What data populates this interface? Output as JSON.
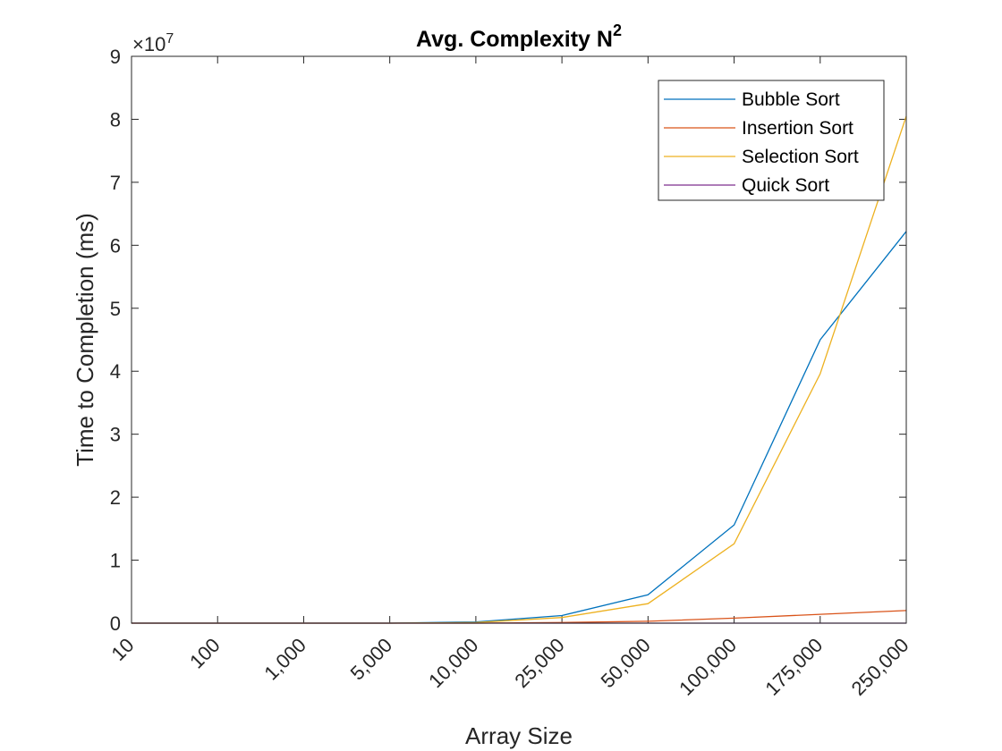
{
  "chart_data": {
    "type": "line",
    "title": "Avg. Complexity N",
    "title_superscript": "2",
    "xlabel": "Array Size",
    "ylabel": "Time to Completion (ms)",
    "y_exponent_label": "×10",
    "y_exponent_power": "7",
    "categories": [
      "10",
      "100",
      "1,000",
      "5,000",
      "10,000",
      "25,000",
      "50,000",
      "100,000",
      "175,000",
      "250,000"
    ],
    "ylim": [
      0,
      9
    ],
    "y_ticks": [
      "0",
      "1",
      "2",
      "3",
      "4",
      "5",
      "6",
      "7",
      "8",
      "9"
    ],
    "grid": false,
    "legend_position": "top-right",
    "series": [
      {
        "name": "Bubble Sort",
        "color": "#0072BD",
        "values": [
          0,
          0,
          0,
          0,
          0.02,
          0.12,
          0.45,
          1.56,
          4.5,
          6.22
        ]
      },
      {
        "name": "Insertion Sort",
        "color": "#D95319",
        "values": [
          0,
          0,
          0,
          0,
          0,
          0.01,
          0.03,
          0.08,
          0.14,
          0.2
        ]
      },
      {
        "name": "Selection Sort",
        "color": "#EDB120",
        "values": [
          0,
          0,
          0,
          0,
          0.01,
          0.09,
          0.31,
          1.26,
          3.96,
          8.05
        ]
      },
      {
        "name": "Quick Sort",
        "color": "#7E2F8E",
        "values": [
          0,
          0,
          0,
          0,
          0,
          0,
          0,
          0,
          0,
          0
        ]
      }
    ]
  }
}
